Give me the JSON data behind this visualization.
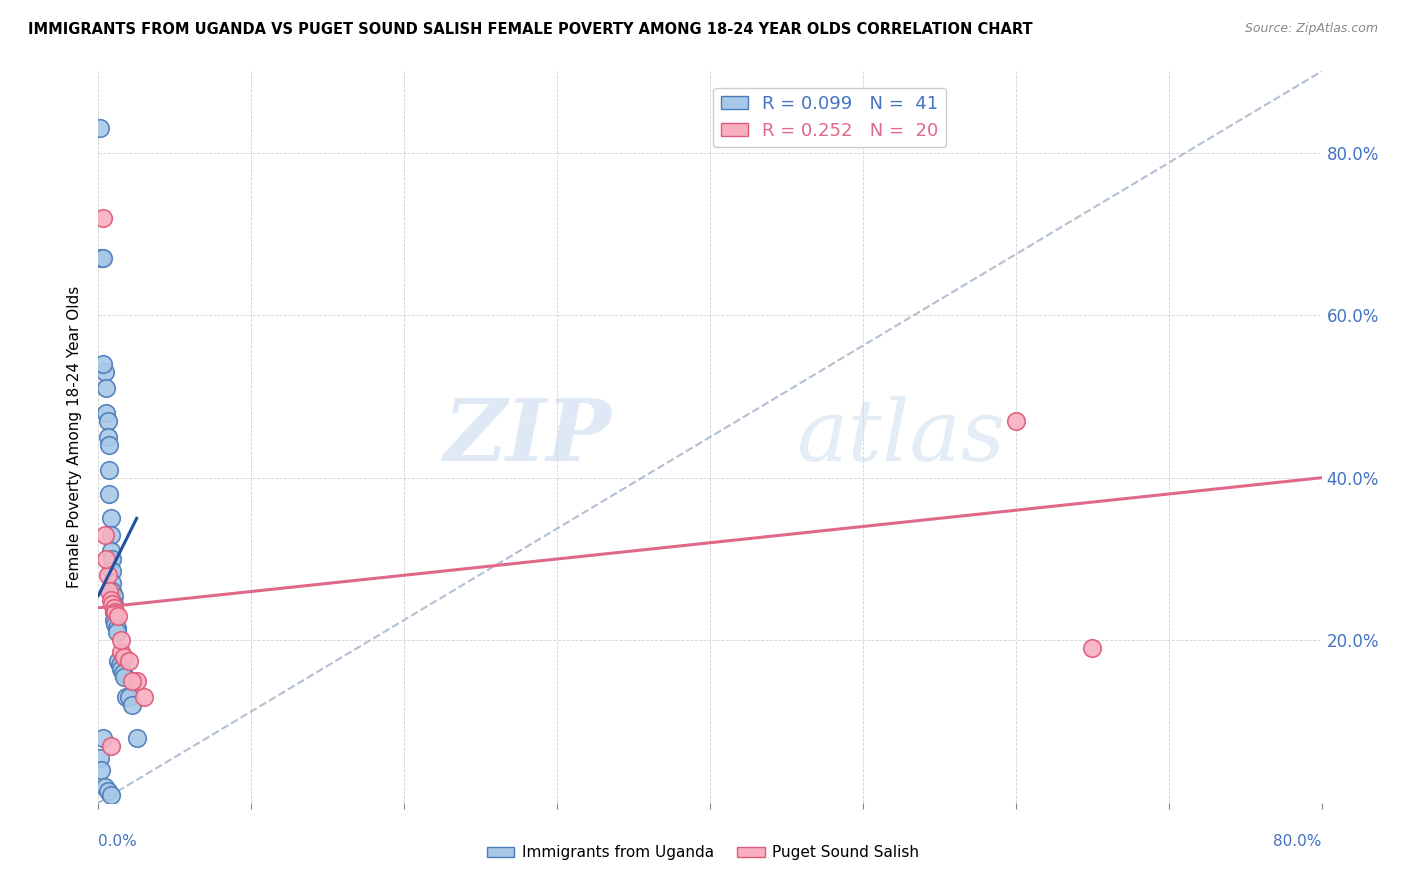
{
  "title": "IMMIGRANTS FROM UGANDA VS PUGET SOUND SALISH FEMALE POVERTY AMONG 18-24 YEAR OLDS CORRELATION CHART",
  "source": "Source: ZipAtlas.com",
  "ylabel": "Female Poverty Among 18-24 Year Olds",
  "xlim": [
    0.0,
    0.8
  ],
  "ylim": [
    0.0,
    0.9
  ],
  "xticks": [
    0.0,
    0.1,
    0.2,
    0.3,
    0.4,
    0.5,
    0.6,
    0.7,
    0.8
  ],
  "yticks": [
    0.0,
    0.2,
    0.4,
    0.6,
    0.8
  ],
  "legend_label1": "Immigrants from Uganda",
  "legend_label2": "Puget Sound Salish",
  "watermark_zip": "ZIP",
  "watermark_atlas": "atlas",
  "color_blue": "#a8c8e8",
  "color_pink": "#f8b0c0",
  "color_blue_edge": "#4a7ab8",
  "color_pink_edge": "#e05878",
  "color_trend_blue": "#2050a0",
  "color_trend_pink": "#e06888",
  "color_trend_dashed": "#a0b0c8",
  "uganda_x": [
    0.001,
    0.002,
    0.003,
    0.004,
    0.005,
    0.005,
    0.006,
    0.006,
    0.007,
    0.007,
    0.007,
    0.008,
    0.008,
    0.008,
    0.009,
    0.009,
    0.009,
    0.009,
    0.01,
    0.01,
    0.01,
    0.01,
    0.011,
    0.012,
    0.012,
    0.013,
    0.014,
    0.015,
    0.016,
    0.017,
    0.018,
    0.02,
    0.022,
    0.025,
    0.001,
    0.002,
    0.003,
    0.003,
    0.004,
    0.006,
    0.008
  ],
  "uganda_y": [
    0.83,
    0.67,
    0.67,
    0.53,
    0.51,
    0.48,
    0.47,
    0.45,
    0.44,
    0.41,
    0.38,
    0.35,
    0.33,
    0.31,
    0.3,
    0.285,
    0.27,
    0.26,
    0.255,
    0.245,
    0.235,
    0.225,
    0.22,
    0.215,
    0.21,
    0.175,
    0.17,
    0.165,
    0.16,
    0.155,
    0.13,
    0.13,
    0.12,
    0.08,
    0.055,
    0.04,
    0.08,
    0.54,
    0.02,
    0.015,
    0.01
  ],
  "salish_x": [
    0.003,
    0.006,
    0.007,
    0.008,
    0.009,
    0.01,
    0.011,
    0.013,
    0.015,
    0.017,
    0.02,
    0.025,
    0.03,
    0.6,
    0.65,
    0.004,
    0.005,
    0.015,
    0.022,
    0.008
  ],
  "salish_y": [
    0.72,
    0.28,
    0.26,
    0.25,
    0.245,
    0.24,
    0.235,
    0.23,
    0.185,
    0.18,
    0.175,
    0.15,
    0.13,
    0.47,
    0.19,
    0.33,
    0.3,
    0.2,
    0.15,
    0.07
  ],
  "uganda_trend_x": [
    0.0,
    0.025
  ],
  "uganda_trend_y": [
    0.255,
    0.35
  ],
  "salish_trend_x": [
    0.0,
    0.8
  ],
  "salish_trend_y": [
    0.24,
    0.4
  ],
  "dashed_trend_x": [
    0.0,
    0.8
  ],
  "dashed_trend_y": [
    0.0,
    0.9
  ]
}
